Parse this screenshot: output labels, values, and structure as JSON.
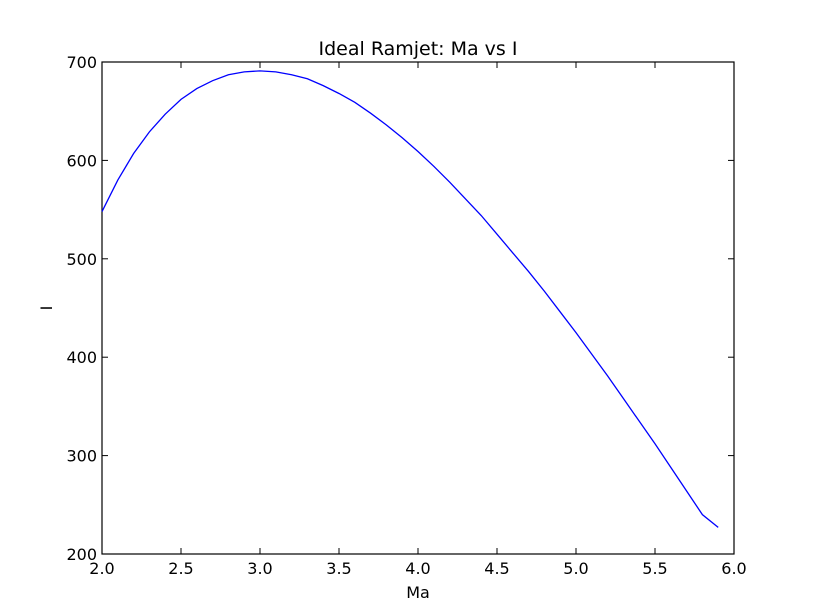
{
  "chart_data": {
    "type": "line",
    "title": "Ideal Ramjet: Ma vs I",
    "xlabel": "Ma",
    "ylabel": "I",
    "xlim": [
      2.0,
      6.0
    ],
    "ylim": [
      200,
      700
    ],
    "x_ticks": [
      2.0,
      2.5,
      3.0,
      3.5,
      4.0,
      4.5,
      5.0,
      5.5,
      6.0
    ],
    "x_tick_labels": [
      "2.0",
      "2.5",
      "3.0",
      "3.5",
      "4.0",
      "4.5",
      "5.0",
      "5.5",
      "6.0"
    ],
    "y_ticks": [
      200,
      300,
      400,
      500,
      600,
      700
    ],
    "y_tick_labels": [
      "200",
      "300",
      "400",
      "500",
      "600",
      "700"
    ],
    "grid": false,
    "legend": "none",
    "series": [
      {
        "color": "#0000ff",
        "x": [
          2.0,
          2.1,
          2.2,
          2.3,
          2.4,
          2.5,
          2.6,
          2.7,
          2.8,
          2.9,
          3.0,
          3.1,
          3.2,
          3.3,
          3.4,
          3.5,
          3.6,
          3.7,
          3.8,
          3.9,
          4.0,
          4.1,
          4.2,
          4.3,
          4.4,
          4.5,
          4.6,
          4.7,
          4.8,
          4.9,
          5.0,
          5.1,
          5.2,
          5.3,
          5.4,
          5.5,
          5.6,
          5.7,
          5.8,
          5.9
        ],
        "y": [
          548,
          580,
          607,
          629,
          647,
          662,
          673,
          681,
          687,
          690,
          691,
          690,
          687,
          683,
          676,
          668,
          659,
          648,
          636,
          623,
          609,
          594,
          578,
          561,
          544,
          525,
          506,
          487,
          467,
          446,
          425,
          403,
          381,
          358,
          335,
          312,
          288,
          264,
          240,
          227
        ]
      }
    ]
  }
}
